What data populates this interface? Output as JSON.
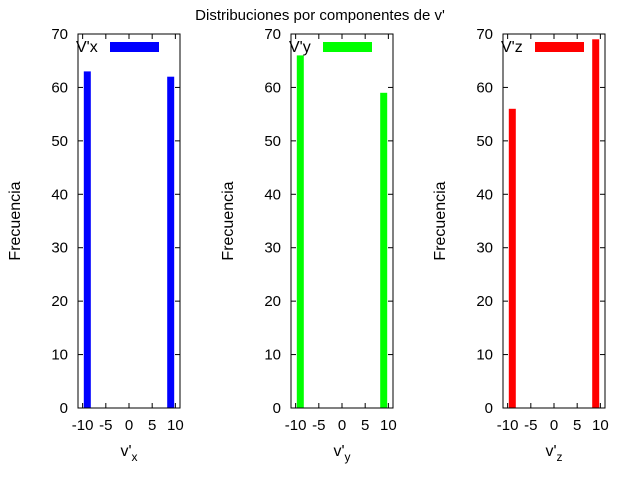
{
  "title": "Distribuciones por componentes de v'",
  "chart_data": [
    {
      "type": "bar",
      "xlabel": "v'",
      "xlabel_sub": "x",
      "ylabel": "Frecuencia",
      "xlim": [
        -11,
        11
      ],
      "ylim": [
        0,
        70
      ],
      "xticks": [
        -10,
        -5,
        0,
        5,
        10
      ],
      "xtick_labels": [
        "-10",
        "-5",
        "0",
        "5",
        "10"
      ],
      "yticks": [
        0,
        10,
        20,
        30,
        40,
        50,
        60,
        70
      ],
      "ytick_labels": [
        "0",
        "10",
        "20",
        "30",
        "40",
        "50",
        "60",
        "70"
      ],
      "legend_position": "top-left",
      "series": [
        {
          "name": "V'x",
          "color": "#0000ff",
          "x": [
            -9,
            9
          ],
          "values": [
            63,
            62
          ]
        }
      ]
    },
    {
      "type": "bar",
      "xlabel": "v'",
      "xlabel_sub": "y",
      "ylabel": "Frecuencia",
      "xlim": [
        -11,
        11
      ],
      "ylim": [
        0,
        70
      ],
      "xticks": [
        -10,
        -5,
        0,
        5,
        10
      ],
      "xtick_labels": [
        "-10",
        "-5",
        "0",
        "5",
        "10"
      ],
      "yticks": [
        0,
        10,
        20,
        30,
        40,
        50,
        60,
        70
      ],
      "ytick_labels": [
        "0",
        "10",
        "20",
        "30",
        "40",
        "50",
        "60",
        "70"
      ],
      "legend_position": "top-left",
      "series": [
        {
          "name": "V'y",
          "color": "#00ff00",
          "x": [
            -9,
            9
          ],
          "values": [
            66,
            59
          ]
        }
      ]
    },
    {
      "type": "bar",
      "xlabel": "v'",
      "xlabel_sub": "z",
      "ylabel": "Frecuencia",
      "xlim": [
        -11,
        11
      ],
      "ylim": [
        0,
        70
      ],
      "xticks": [
        -10,
        -5,
        0,
        5,
        10
      ],
      "xtick_labels": [
        "-10",
        "-5",
        "0",
        "5",
        "10"
      ],
      "yticks": [
        0,
        10,
        20,
        30,
        40,
        50,
        60,
        70
      ],
      "ytick_labels": [
        "0",
        "10",
        "20",
        "30",
        "40",
        "50",
        "60",
        "70"
      ],
      "legend_position": "top-left",
      "series": [
        {
          "name": "V'z",
          "color": "#ff0000",
          "x": [
            -9,
            9
          ],
          "values": [
            56,
            69
          ]
        }
      ]
    }
  ]
}
